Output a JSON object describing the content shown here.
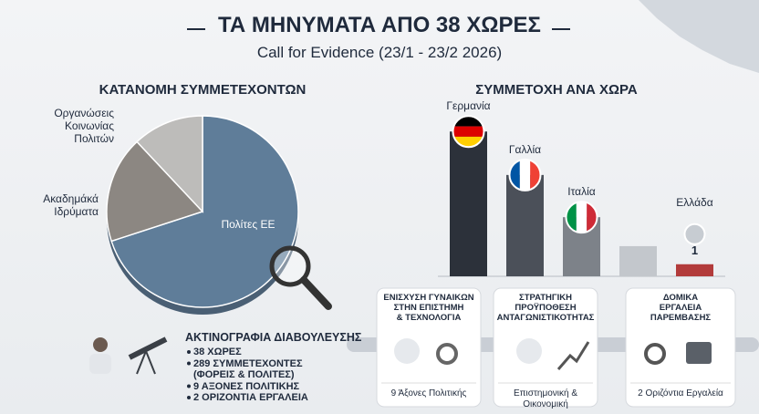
{
  "header": {
    "title": "ΤΑ ΜΗΝΥΜΑΤΑ ΑΠΟ 38 ΧΩΡΕΣ",
    "subtitle": "Call for Evidence (23/1 - 23/2 2026)"
  },
  "chart_data": [
    {
      "type": "pie",
      "title": "ΚΑΤΑΝΟΜΗ ΣΥΜΜΕΤΕΧΟΝΤΩΝ",
      "categories": [
        "Πολίτες ΕΕ",
        "Ακαδημάκά\nΙδρύματα",
        "Οργανώσεις\nΚοινωνίας\nΠολιτών"
      ],
      "values": [
        70,
        18,
        12
      ],
      "colors": [
        "#5f7d99",
        "#8c8782",
        "#bdbcba"
      ]
    },
    {
      "type": "bar",
      "title": "ΣΥΜΜΕΤΟΧΗ ΑΝΑ ΧΩΡΑ",
      "categories": [
        "Γερμανία",
        "Γαλλία",
        "Ιταλία",
        null,
        "Ελλάδα"
      ],
      "values": [
        12,
        8.4,
        4.9,
        2.5,
        1
      ],
      "colors": [
        "#2c313a",
        "#4b5059",
        "#7d8289",
        "#c3c7cc",
        "#b23b3b"
      ],
      "ylim": [
        0,
        13
      ]
    }
  ],
  "summary": {
    "title": "ΑΚΤΙΝΟΓΡΑΦΙΑ ΔΙΑΒΟΥΛΕΥΣΗΣ",
    "items": [
      "38 ΧΩΡΕΣ",
      "289 ΣΥΜΜΕΤΕΧΟΝΤΕΣ\n(ΦΟΡΕΙΣ & ΠΟΛΙΤΕΣ)",
      "9 ΑΞΟΝΕΣ ΠΟΛΙΤΙΚΗΣ",
      "2 ΟΡΙΖΟΝΤΙΑ ΕΡΓΑΛΕΙΑ"
    ]
  },
  "cards": [
    {
      "title": "ΕΝΙΣΧΥΣΗ ΓΥΝΑΙΚΩΝ\nΣΤΗΝ ΕΠΙΣΤΗΜΗ\n& ΤΕΧΝΟΛΟΓΙΑ",
      "footer": "9 Άξονες Πολιτικής"
    },
    {
      "title": "ΣΤΡΑΤΗΓΙΚΗ\nΠΡΟΫΠΟΘΕΣΗ\nΑΝΤΑΓΩΝΙΣΤΙΚΟΤΗΤΑΣ",
      "footer": "Επιστημονική & Οικονομική"
    },
    {
      "title": "ΔΟΜΙΚΑ\nΕΡΓΑΛΕΙΑ\nΠΑΡΕΜΒΑΣΗΣ",
      "footer": "2 Οριζόντια Εργαλεία"
    }
  ]
}
